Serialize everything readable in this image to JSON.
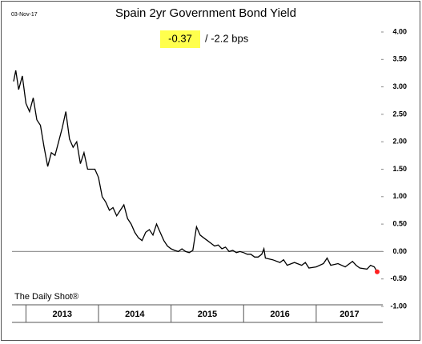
{
  "chart_data": {
    "type": "line",
    "date": "03-Nov-17",
    "title": "Spain 2yr Government Bond Yield",
    "last_value": "-0.37",
    "change": "/  -2.2 bps",
    "source": "The Daily Shot®",
    "color": "#000000",
    "end_marker_color": "#ff2020",
    "hline": 0,
    "xlim": [
      2012.83,
      2017.84
    ],
    "xticks": [
      2013,
      2014,
      2015,
      2016,
      2017
    ],
    "ylim": [
      -1,
      4
    ],
    "yticks": [
      {
        "value": 4,
        "label": "4.00"
      },
      {
        "value": 3.5,
        "label": "3.50"
      },
      {
        "value": 3,
        "label": "3.00"
      },
      {
        "value": 2.5,
        "label": "2.50"
      },
      {
        "value": 2,
        "label": "2.00"
      },
      {
        "value": 1.5,
        "label": "1.50"
      },
      {
        "value": 1,
        "label": "1.00"
      },
      {
        "value": 0.5,
        "label": "0.50"
      },
      {
        "value": 0,
        "label": "0.00"
      },
      {
        "value": -0.5,
        "label": "-0.50"
      },
      {
        "value": -1,
        "label": "-1.00"
      }
    ],
    "x": [
      2012.83,
      2012.86,
      2012.9,
      2012.95,
      2013.0,
      2013.05,
      2013.1,
      2013.15,
      2013.2,
      2013.25,
      2013.3,
      2013.35,
      2013.4,
      2013.45,
      2013.5,
      2013.55,
      2013.6,
      2013.65,
      2013.7,
      2013.75,
      2013.8,
      2013.85,
      2013.9,
      2013.95,
      2014.0,
      2014.05,
      2014.1,
      2014.15,
      2014.2,
      2014.25,
      2014.3,
      2014.35,
      2014.4,
      2014.45,
      2014.5,
      2014.55,
      2014.6,
      2014.65,
      2014.7,
      2014.75,
      2014.8,
      2014.85,
      2014.9,
      2014.95,
      2015.0,
      2015.05,
      2015.1,
      2015.15,
      2015.2,
      2015.25,
      2015.3,
      2015.35,
      2015.4,
      2015.45,
      2015.5,
      2015.55,
      2015.6,
      2015.65,
      2015.7,
      2015.75,
      2015.8,
      2015.85,
      2015.9,
      2015.95,
      2016.0,
      2016.05,
      2016.1,
      2016.15,
      2016.2,
      2016.25,
      2016.28,
      2016.3,
      2016.4,
      2016.5,
      2016.55,
      2016.6,
      2016.7,
      2016.8,
      2016.85,
      2016.9,
      2017.0,
      2017.1,
      2017.15,
      2017.2,
      2017.3,
      2017.4,
      2017.5,
      2017.55,
      2017.6,
      2017.7,
      2017.75,
      2017.8,
      2017.84
    ],
    "values": [
      3.1,
      3.3,
      2.95,
      3.2,
      2.7,
      2.55,
      2.8,
      2.4,
      2.3,
      1.9,
      1.55,
      1.8,
      1.75,
      2.0,
      2.25,
      2.55,
      2.05,
      1.9,
      2.0,
      1.6,
      1.8,
      1.5,
      1.5,
      1.5,
      1.35,
      1.0,
      0.9,
      0.75,
      0.8,
      0.65,
      0.75,
      0.85,
      0.6,
      0.5,
      0.35,
      0.25,
      0.2,
      0.35,
      0.4,
      0.3,
      0.5,
      0.35,
      0.2,
      0.1,
      0.05,
      0.02,
      0.0,
      0.05,
      0.0,
      -0.02,
      0.02,
      0.45,
      0.3,
      0.25,
      0.2,
      0.15,
      0.1,
      0.12,
      0.05,
      0.08,
      0.0,
      0.02,
      -0.02,
      0.0,
      -0.02,
      -0.05,
      -0.05,
      -0.1,
      -0.1,
      -0.05,
      0.05,
      -0.12,
      -0.15,
      -0.2,
      -0.15,
      -0.25,
      -0.2,
      -0.25,
      -0.2,
      -0.3,
      -0.28,
      -0.22,
      -0.12,
      -0.25,
      -0.22,
      -0.28,
      -0.18,
      -0.25,
      -0.3,
      -0.32,
      -0.25,
      -0.28,
      -0.37
    ]
  }
}
